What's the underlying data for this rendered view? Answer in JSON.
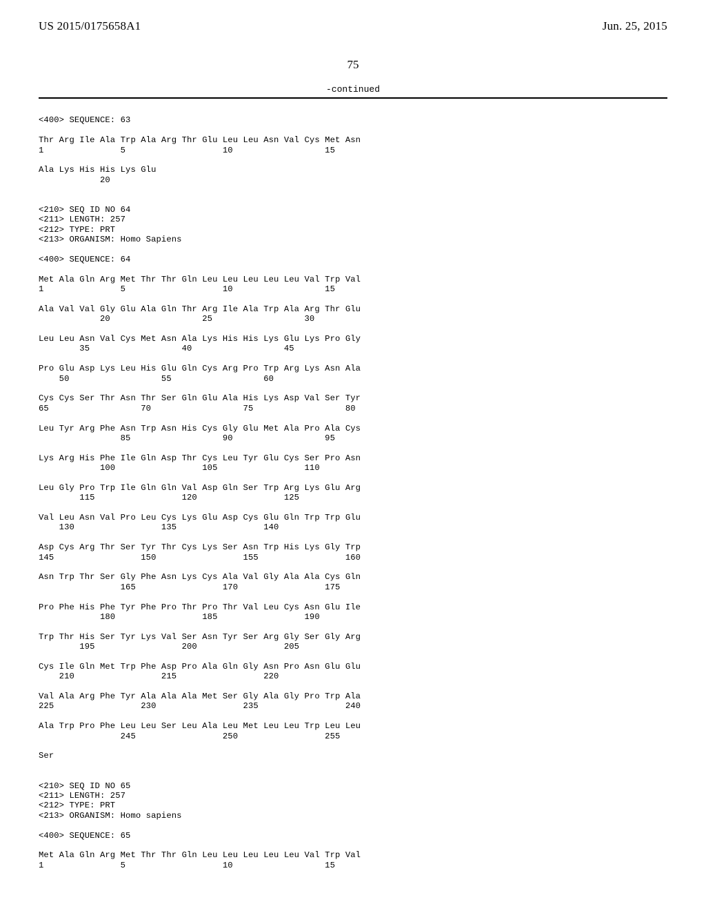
{
  "header": {
    "left": "US 2015/0175658A1",
    "right": "Jun. 25, 2015"
  },
  "page_number": "75",
  "continued_label": "-continued",
  "seq": {
    "s63_header": "<400> SEQUENCE: 63",
    "s63_l1": "Thr Arg Ile Ala Trp Ala Arg Thr Glu Leu Leu Asn Val Cys Met Asn",
    "s63_n1": "1               5                   10                  15",
    "s63_l2": "Ala Lys His His Lys Glu",
    "s63_n2": "            20",
    "s64_meta1": "<210> SEQ ID NO 64",
    "s64_meta2": "<211> LENGTH: 257",
    "s64_meta3": "<212> TYPE: PRT",
    "s64_meta4": "<213> ORGANISM: Homo Sapiens",
    "s64_header": "<400> SEQUENCE: 64",
    "s64_l1": "Met Ala Gln Arg Met Thr Thr Gln Leu Leu Leu Leu Leu Val Trp Val",
    "s64_n1": "1               5                   10                  15",
    "s64_l2": "Ala Val Val Gly Glu Ala Gln Thr Arg Ile Ala Trp Ala Arg Thr Glu",
    "s64_n2": "            20                  25                  30",
    "s64_l3": "Leu Leu Asn Val Cys Met Asn Ala Lys His His Lys Glu Lys Pro Gly",
    "s64_n3": "        35                  40                  45",
    "s64_l4": "Pro Glu Asp Lys Leu His Glu Gln Cys Arg Pro Trp Arg Lys Asn Ala",
    "s64_n4": "    50                  55                  60",
    "s64_l5": "Cys Cys Ser Thr Asn Thr Ser Gln Glu Ala His Lys Asp Val Ser Tyr",
    "s64_n5": "65                  70                  75                  80",
    "s64_l6": "Leu Tyr Arg Phe Asn Trp Asn His Cys Gly Glu Met Ala Pro Ala Cys",
    "s64_n6": "                85                  90                  95",
    "s64_l7": "Lys Arg His Phe Ile Gln Asp Thr Cys Leu Tyr Glu Cys Ser Pro Asn",
    "s64_n7": "            100                 105                 110",
    "s64_l8": "Leu Gly Pro Trp Ile Gln Gln Val Asp Gln Ser Trp Arg Lys Glu Arg",
    "s64_n8": "        115                 120                 125",
    "s64_l9": "Val Leu Asn Val Pro Leu Cys Lys Glu Asp Cys Glu Gln Trp Trp Glu",
    "s64_n9": "    130                 135                 140",
    "s64_l10": "Asp Cys Arg Thr Ser Tyr Thr Cys Lys Ser Asn Trp His Lys Gly Trp",
    "s64_n10": "145                 150                 155                 160",
    "s64_l11": "Asn Trp Thr Ser Gly Phe Asn Lys Cys Ala Val Gly Ala Ala Cys Gln",
    "s64_n11": "                165                 170                 175",
    "s64_l12": "Pro Phe His Phe Tyr Phe Pro Thr Pro Thr Val Leu Cys Asn Glu Ile",
    "s64_n12": "            180                 185                 190",
    "s64_l13": "Trp Thr His Ser Tyr Lys Val Ser Asn Tyr Ser Arg Gly Ser Gly Arg",
    "s64_n13": "        195                 200                 205",
    "s64_l14": "Cys Ile Gln Met Trp Phe Asp Pro Ala Gln Gly Asn Pro Asn Glu Glu",
    "s64_n14": "    210                 215                 220",
    "s64_l15": "Val Ala Arg Phe Tyr Ala Ala Ala Met Ser Gly Ala Gly Pro Trp Ala",
    "s64_n15": "225                 230                 235                 240",
    "s64_l16": "Ala Trp Pro Phe Leu Leu Ser Leu Ala Leu Met Leu Leu Trp Leu Leu",
    "s64_n16": "                245                 250                 255",
    "s64_l17": "Ser",
    "s65_meta1": "<210> SEQ ID NO 65",
    "s65_meta2": "<211> LENGTH: 257",
    "s65_meta3": "<212> TYPE: PRT",
    "s65_meta4": "<213> ORGANISM: Homo sapiens",
    "s65_header": "<400> SEQUENCE: 65",
    "s65_l1": "Met Ala Gln Arg Met Thr Thr Gln Leu Leu Leu Leu Leu Val Trp Val",
    "s65_n1": "1               5                   10                  15"
  }
}
